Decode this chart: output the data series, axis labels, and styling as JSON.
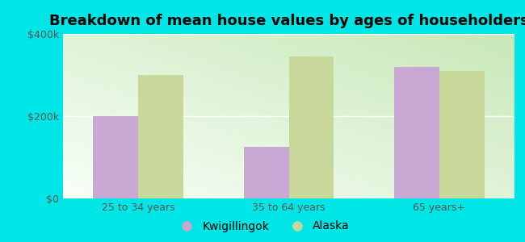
{
  "title": "Breakdown of mean house values by ages of householders",
  "categories": [
    "25 to 34 years",
    "35 to 64 years",
    "65 years+"
  ],
  "kwigillingok_values": [
    200000,
    125000,
    320000
  ],
  "alaska_values": [
    300000,
    345000,
    310000
  ],
  "bar_color_kwi": "#c9a8d4",
  "bar_color_alaska": "#c8d89a",
  "background_color": "#00e5e5",
  "gradient_color_corner": "#c8e8b8",
  "gradient_color_white": "#f8fff8",
  "ylim": [
    0,
    400000
  ],
  "yticks": [
    0,
    200000,
    400000
  ],
  "ytick_labels": [
    "$0",
    "$200k",
    "$400k"
  ],
  "legend_labels": [
    "Kwigillingok",
    "Alaska"
  ],
  "bar_width": 0.3,
  "title_fontsize": 13,
  "tick_fontsize": 9,
  "legend_fontsize": 10
}
